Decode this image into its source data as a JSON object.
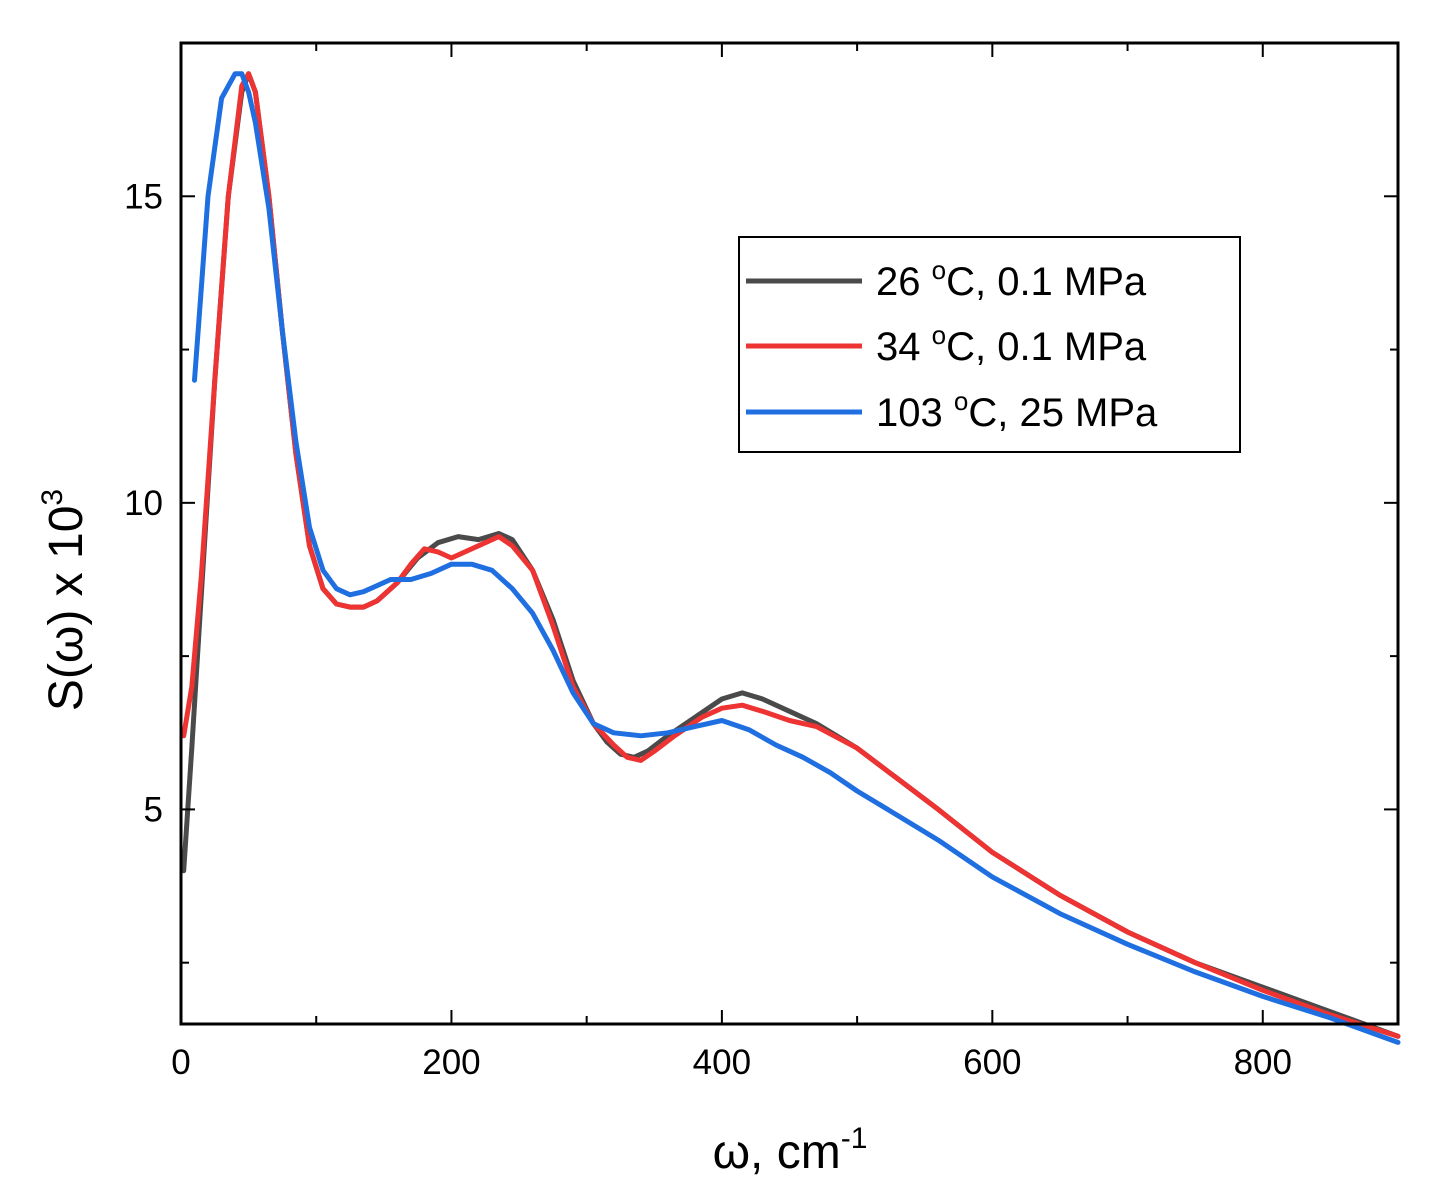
{
  "chart_data": {
    "type": "line",
    "xlabel": "ω, cm",
    "xlabel_sup": "-1",
    "ylabel": "S(ω) x 10",
    "ylabel_sup": "3",
    "xlim": [
      0,
      900
    ],
    "ylim": [
      1.5,
      17.5
    ],
    "x_ticks": [
      0,
      200,
      400,
      600,
      800
    ],
    "x_tick_labels": [
      "0",
      "200",
      "400",
      "600",
      "800"
    ],
    "x_minor_ticks": [
      100,
      300,
      500,
      700
    ],
    "y_ticks": [
      5,
      10,
      15
    ],
    "y_tick_labels": [
      "5",
      "10",
      "15"
    ],
    "y_minor_ticks": [
      2.5,
      7.5,
      12.5
    ],
    "grid": false,
    "legend_position": "top-right",
    "series": [
      {
        "name": "26 °C, 0.1 MPa",
        "label_main": "26 ",
        "label_sup": "o",
        "label_rest": "C, 0.1 MPa",
        "color": "#4a4a4a",
        "x": [
          2,
          8,
          15,
          25,
          35,
          45,
          50,
          55,
          65,
          75,
          85,
          95,
          105,
          115,
          125,
          135,
          145,
          160,
          175,
          190,
          205,
          220,
          235,
          245,
          260,
          275,
          290,
          305,
          315,
          325,
          335,
          345,
          360,
          380,
          400,
          415,
          430,
          450,
          470,
          500,
          530,
          560,
          600,
          650,
          700,
          750,
          800,
          850,
          900
        ],
        "y": [
          4.0,
          6.0,
          8.5,
          12.0,
          15.0,
          16.7,
          17.0,
          16.7,
          15.0,
          12.8,
          10.8,
          9.3,
          8.6,
          8.35,
          8.3,
          8.3,
          8.4,
          8.7,
          9.1,
          9.35,
          9.45,
          9.4,
          9.5,
          9.4,
          8.9,
          8.1,
          7.1,
          6.4,
          6.1,
          5.9,
          5.85,
          5.95,
          6.2,
          6.5,
          6.8,
          6.9,
          6.8,
          6.6,
          6.4,
          6.0,
          5.5,
          5.0,
          4.3,
          3.6,
          3.0,
          2.5,
          2.1,
          1.7,
          1.3
        ]
      },
      {
        "name": "34 °C, 0.1 MPa",
        "label_main": "34 ",
        "label_sup": "o",
        "label_rest": "C, 0.1 MPa",
        "color": "#ee3333",
        "x": [
          2,
          8,
          15,
          25,
          35,
          45,
          50,
          55,
          65,
          75,
          85,
          95,
          105,
          115,
          125,
          135,
          145,
          160,
          170,
          180,
          190,
          200,
          210,
          225,
          235,
          245,
          260,
          275,
          290,
          305,
          320,
          330,
          340,
          350,
          365,
          385,
          400,
          415,
          430,
          450,
          470,
          500,
          530,
          560,
          600,
          650,
          700,
          750,
          800,
          850,
          900
        ],
        "y": [
          6.2,
          7.0,
          8.8,
          12.0,
          15.0,
          16.8,
          17.0,
          16.7,
          15.0,
          12.8,
          10.8,
          9.3,
          8.6,
          8.35,
          8.3,
          8.3,
          8.4,
          8.7,
          9.0,
          9.25,
          9.2,
          9.1,
          9.2,
          9.35,
          9.45,
          9.3,
          8.9,
          8.0,
          7.0,
          6.4,
          6.05,
          5.85,
          5.8,
          5.95,
          6.2,
          6.5,
          6.65,
          6.7,
          6.6,
          6.45,
          6.35,
          6.0,
          5.5,
          5.0,
          4.3,
          3.6,
          3.0,
          2.5,
          2.05,
          1.65,
          1.3
        ]
      },
      {
        "name": "103 °C, 25 MPa",
        "label_main": "103 ",
        "label_sup": "o",
        "label_rest": "C, 25 MPa",
        "color": "#1f6fe0",
        "x": [
          10,
          15,
          20,
          30,
          40,
          45,
          50,
          55,
          65,
          75,
          85,
          95,
          105,
          115,
          125,
          135,
          145,
          155,
          170,
          185,
          200,
          215,
          230,
          245,
          260,
          275,
          290,
          305,
          320,
          340,
          360,
          380,
          400,
          420,
          440,
          460,
          480,
          500,
          530,
          560,
          600,
          650,
          700,
          750,
          800,
          850,
          900
        ],
        "y": [
          12.0,
          13.5,
          15.0,
          16.6,
          17.0,
          17.0,
          16.7,
          16.2,
          14.8,
          12.8,
          11.0,
          9.6,
          8.9,
          8.6,
          8.5,
          8.55,
          8.65,
          8.75,
          8.75,
          8.85,
          9.0,
          9.0,
          8.9,
          8.6,
          8.2,
          7.6,
          6.9,
          6.4,
          6.25,
          6.2,
          6.25,
          6.35,
          6.45,
          6.3,
          6.05,
          5.85,
          5.6,
          5.3,
          4.9,
          4.5,
          3.9,
          3.3,
          2.8,
          2.35,
          1.95,
          1.6,
          1.2
        ]
      }
    ]
  }
}
